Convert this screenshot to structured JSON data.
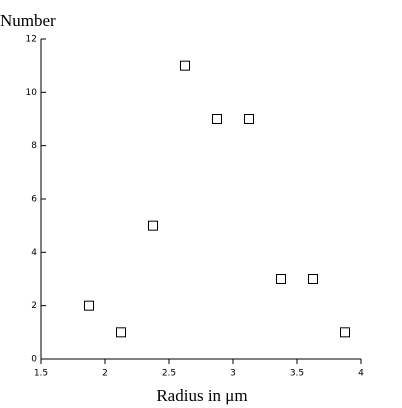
{
  "chart_data": {
    "type": "scatter",
    "ylabel": "Number",
    "xlabel": "Radius in μm",
    "x": [
      1.875,
      2.125,
      2.375,
      2.625,
      2.875,
      3.125,
      3.375,
      3.625,
      3.875
    ],
    "values": [
      2,
      1,
      5,
      11,
      9,
      9,
      3,
      3,
      1
    ],
    "color": "#000000",
    "xlim": [
      1.5,
      4
    ],
    "xticks": [
      1.5,
      2,
      2.5,
      3,
      3.5,
      4
    ],
    "ylim": [
      0,
      12
    ],
    "yticks": [
      0,
      2,
      4,
      6,
      8,
      10,
      12
    ]
  }
}
